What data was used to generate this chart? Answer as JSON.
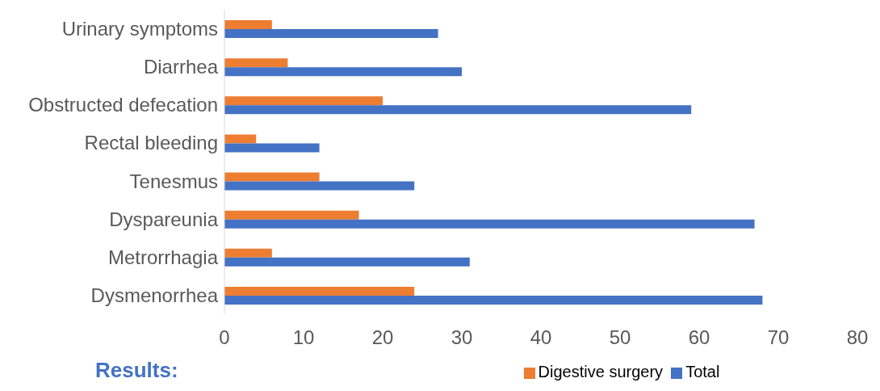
{
  "chart_data": {
    "type": "bar",
    "orientation": "horizontal",
    "categories": [
      "Urinary symptoms",
      "Diarrhea",
      "Obstructed defecation",
      "Rectal bleeding",
      "Tenesmus",
      "Dyspareunia",
      "Metrorrhagia",
      "Dysmenorrhea"
    ],
    "series": [
      {
        "name": "Digestive surgery",
        "color": "#ed7d31",
        "values": [
          6,
          8,
          20,
          4,
          12,
          17,
          6,
          24
        ]
      },
      {
        "name": "Total",
        "color": "#4472c4",
        "values": [
          27,
          30,
          59,
          12,
          24,
          67,
          31,
          68
        ]
      }
    ],
    "xlim": [
      0,
      80
    ],
    "xticks": [
      0,
      10,
      20,
      30,
      40,
      50,
      60,
      70,
      80
    ],
    "grid": false,
    "legend": "bottom",
    "annotations": [
      "Results:"
    ]
  }
}
